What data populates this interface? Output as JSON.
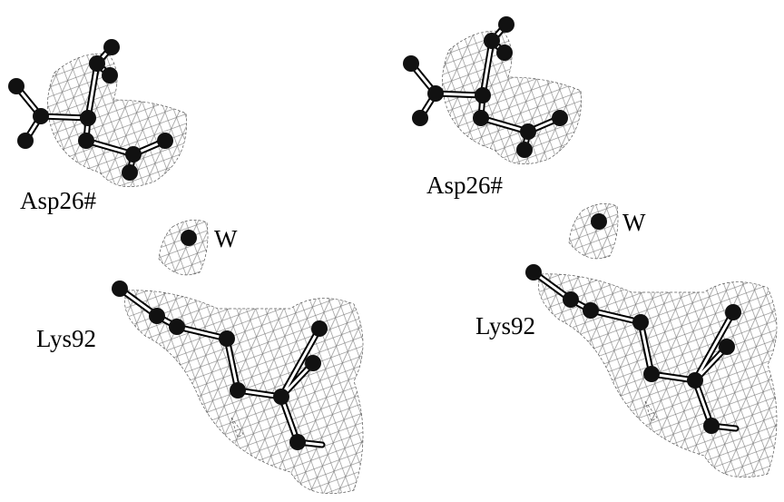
{
  "left_view": {
    "residue_1": "Asp26#",
    "water": "W",
    "residue_2": "Lys92"
  },
  "right_view": {
    "residue_1": "Asp26#",
    "water": "W",
    "residue_2": "Lys92"
  }
}
